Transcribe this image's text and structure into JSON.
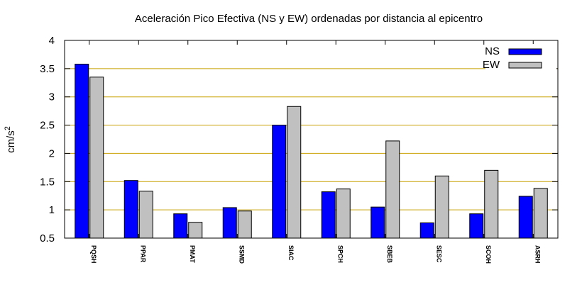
{
  "chart_data": {
    "type": "bar",
    "title": "Aceleración Pico Efectiva (NS y EW) ordenadas por distancia al epicentro",
    "xlabel": "",
    "ylabel": "cm/s",
    "ylabel_superscript": "2",
    "ylim": [
      0.5,
      4
    ],
    "yticks": [
      0.5,
      1,
      1.5,
      2,
      2.5,
      3,
      3.5,
      4
    ],
    "ytick_labels": [
      "0.5",
      "1",
      "1.5",
      "2",
      "2.5",
      "3",
      "3.5",
      "4"
    ],
    "grid": "horizontal",
    "grid_color": "#c8a000",
    "legend_position": "top-right",
    "categories": [
      "PQSH",
      "PPAR",
      "PMAT",
      "SSMD",
      "SIAC",
      "SPCH",
      "SBEB",
      "SESC",
      "SCOH",
      "ASRH"
    ],
    "series": [
      {
        "name": "NS",
        "color": "#0000ff",
        "values": [
          3.58,
          1.52,
          0.93,
          1.04,
          2.5,
          1.32,
          1.05,
          0.77,
          0.93,
          1.24
        ]
      },
      {
        "name": "EW",
        "color": "#c0c0c0",
        "values": [
          3.35,
          1.33,
          0.78,
          0.98,
          2.83,
          1.37,
          2.22,
          1.6,
          1.7,
          1.38
        ]
      }
    ]
  }
}
